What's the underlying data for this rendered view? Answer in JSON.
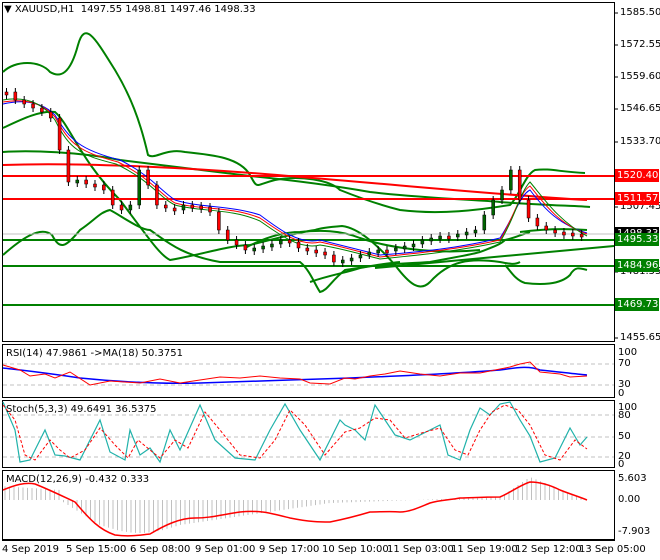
{
  "header": {
    "symbol": "XAUUSD,H1",
    "ohlc": "1497.55 1498.81 1497.46 1498.33",
    "collapse_icon": "triangle-down-icon"
  },
  "price_axis": {
    "ticks": [
      "1585.50",
      "1572.55",
      "1559.60",
      "1546.65",
      "1533.70",
      "1507.45",
      "1481.55",
      "1455.65"
    ],
    "current_price": "1498.33",
    "levels": [
      {
        "value": "1520.40",
        "color": "#ff0000"
      },
      {
        "value": "1511.57",
        "color": "#ff0000"
      },
      {
        "value": "1495.33",
        "color": "#008000"
      },
      {
        "value": "1484.96",
        "color": "#008000"
      },
      {
        "value": "1469.73",
        "color": "#008000"
      }
    ]
  },
  "rsi": {
    "label": "RSI(14) 47.9861  ->MA(18) 50.3751",
    "ticks": [
      "100",
      "70",
      "30",
      "0"
    ]
  },
  "stoch": {
    "label": "Stoch(5,3,3) 49.6491 36.5375",
    "ticks": [
      "100",
      "80",
      "50",
      "20",
      "0"
    ]
  },
  "macd": {
    "label": "MACD(12,26,9) -0.432 0.333",
    "ticks": [
      "5.603",
      "0.00",
      "-7.903"
    ]
  },
  "time_axis": [
    "4 Sep 2019",
    "5 Sep 15:00",
    "6 Sep 08:00",
    "9 Sep 01:00",
    "9 Sep 17:00",
    "10 Sep 10:00",
    "11 Sep 03:00",
    "11 Sep 19:00",
    "12 Sep 12:00",
    "13 Sep 05:00"
  ],
  "chart_data": [
    {
      "type": "candlestick",
      "title": "XAUUSD,H1",
      "ylim": [
        1450,
        1590
      ],
      "x": [
        "4 Sep 2019",
        "5 Sep 15:00",
        "6 Sep 08:00",
        "9 Sep 01:00",
        "9 Sep 17:00",
        "10 Sep 10:00",
        "11 Sep 03:00",
        "11 Sep 19:00",
        "12 Sep 12:00",
        "13 Sep 05:00"
      ],
      "approx_close": [
        1548,
        1515,
        1505,
        1507,
        1490,
        1495,
        1497,
        1500,
        1518,
        1498
      ],
      "horizontal_levels": [
        1520.4,
        1511.57,
        1495.33,
        1484.96,
        1469.73
      ],
      "overlays": [
        "Bollinger Bands (wide)",
        "Bollinger Bands (narrow)",
        "Moving averages (red, blue, green)"
      ]
    },
    {
      "type": "line",
      "title": "RSI(14)",
      "ylim": [
        0,
        100
      ],
      "series": [
        {
          "name": "RSI",
          "last": 47.9861,
          "color": "#ff0000"
        },
        {
          "name": "MA(18)",
          "last": 50.3751,
          "color": "#0000ff"
        }
      ],
      "levels": [
        70,
        30
      ]
    },
    {
      "type": "line",
      "title": "Stoch(5,3,3)",
      "ylim": [
        0,
        100
      ],
      "series": [
        {
          "name": "%K",
          "last": 49.6491,
          "color": "#20b2aa"
        },
        {
          "name": "%D",
          "last": 36.5375,
          "color": "#ff0000"
        }
      ],
      "levels": [
        80,
        50,
        20
      ]
    },
    {
      "type": "bar",
      "title": "MACD(12,26,9)",
      "ylim": [
        -7.903,
        5.603
      ],
      "series": [
        {
          "name": "MACD",
          "last": -0.432,
          "color": "#c0c0c0"
        },
        {
          "name": "Signal",
          "last": 0.333,
          "color": "#ff0000"
        }
      ]
    }
  ]
}
